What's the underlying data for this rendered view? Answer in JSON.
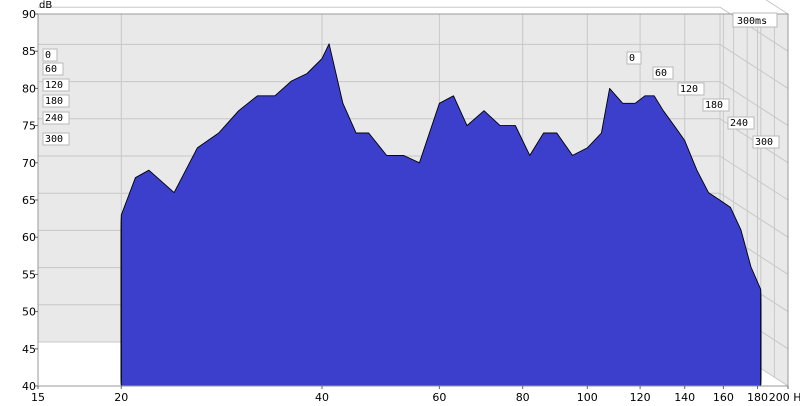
{
  "chart_data": {
    "type": "area",
    "subtype": "cumulative spectral decay (waterfall)",
    "title": "",
    "xlabel": "Hz",
    "ylabel": "dB",
    "x_scale": "log",
    "x_range": [
      15,
      200
    ],
    "x_ticks": [
      "15",
      "20",
      "40",
      "60",
      "80",
      "100",
      "120",
      "140",
      "160",
      "180",
      "200 Hz"
    ],
    "y_range": [
      40,
      90
    ],
    "y_ticks": [
      "90",
      "85",
      "80",
      "75",
      "70",
      "65",
      "60",
      "55",
      "50",
      "45",
      "40"
    ],
    "y_unit_label": "dB",
    "time_axis_ms": {
      "ticks": [
        "0",
        "60",
        "120",
        "180",
        "240",
        "300"
      ],
      "max_label": "300ms"
    },
    "slice_count": 50,
    "first_slice": {
      "freq_hz": [
        20,
        21,
        22,
        24,
        26,
        28,
        30,
        32,
        34,
        36,
        38,
        40,
        41,
        43,
        45,
        47,
        50,
        53,
        56,
        60,
        63,
        66,
        70,
        74,
        78,
        82,
        86,
        90,
        95,
        100,
        105,
        108,
        113,
        118,
        122,
        126,
        130,
        135,
        140,
        146,
        152,
        158,
        164,
        170,
        176,
        182
      ],
      "level_db": [
        63,
        68,
        69,
        66,
        72,
        74,
        77,
        79,
        79,
        81,
        82,
        84,
        86,
        78,
        74,
        74,
        71,
        71,
        70,
        78,
        79,
        75,
        77,
        75,
        75,
        71,
        74,
        74,
        71,
        72,
        74,
        80,
        78,
        78,
        79,
        79,
        77,
        75,
        73,
        69,
        66,
        65,
        64,
        61,
        56,
        53
      ]
    },
    "colors": {
      "fill": "#3b3fcc",
      "line": "#000000",
      "grid": "#c8c8c8",
      "back_wall": "#e9e9e9"
    },
    "grid": true
  }
}
